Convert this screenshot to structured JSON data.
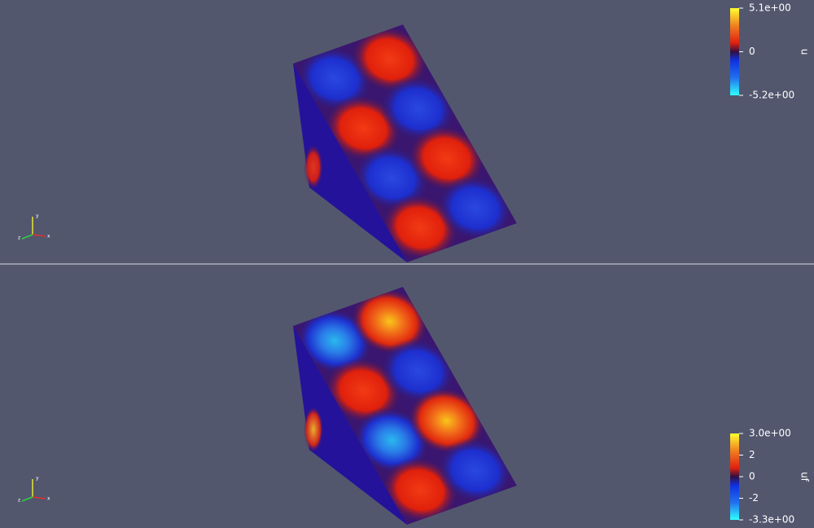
{
  "views": [
    {
      "colorbar": {
        "title": "u",
        "labels": [
          "5.1e+00",
          "0",
          "-5.2e+00"
        ]
      },
      "axes": {
        "x": "x",
        "y": "y",
        "z": "z"
      }
    },
    {
      "colorbar": {
        "title": "uf",
        "labels": [
          "3.0e+00",
          "2",
          "0",
          "-2",
          "-3.3e+00"
        ]
      },
      "axes": {
        "x": "x",
        "y": "y",
        "z": "z"
      }
    }
  ]
}
